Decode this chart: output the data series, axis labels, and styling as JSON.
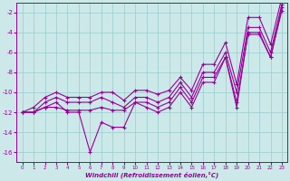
{
  "title": "",
  "xlabel": "Windchill (Refroidissement éolien,°C)",
  "background_color": "#cce8e8",
  "grid_color": "#99cccc",
  "line_color": "#990099",
  "x_values": [
    0,
    1,
    2,
    3,
    4,
    5,
    6,
    7,
    8,
    9,
    10,
    11,
    12,
    13,
    14,
    15,
    16,
    17,
    18,
    19,
    20,
    21,
    22,
    23
  ],
  "line1": [
    -12,
    -12,
    -11.5,
    -11,
    -12,
    -12,
    -16,
    -13,
    -13.5,
    -13.5,
    -11,
    -11.5,
    -12,
    -11.5,
    -10,
    -11.5,
    -9,
    -9,
    -6.5,
    -11.5,
    -4,
    -4,
    -6.5,
    -1.5
  ],
  "line2": [
    -12,
    -12,
    -11.5,
    -11.5,
    -11.8,
    -11.8,
    -11.8,
    -11.5,
    -11.8,
    -11.8,
    -11,
    -11,
    -11.5,
    -11,
    -9.5,
    -11,
    -8.5,
    -8.5,
    -6.5,
    -11,
    -4.2,
    -4.2,
    -6.5,
    -1.8
  ],
  "line3": [
    -12,
    -12,
    -11,
    -10.5,
    -11,
    -11,
    -11,
    -10.5,
    -11,
    -11.5,
    -10.5,
    -10.5,
    -11,
    -10.5,
    -9,
    -10.5,
    -8,
    -8,
    -6,
    -10,
    -3.5,
    -3.5,
    -6,
    -1.2
  ],
  "line4": [
    -12,
    -11.5,
    -10.5,
    -10,
    -10.5,
    -10.5,
    -10.5,
    -10,
    -10,
    -10.8,
    -9.8,
    -9.8,
    -10.2,
    -9.8,
    -8.5,
    -9.8,
    -7.2,
    -7.2,
    -5,
    -9.2,
    -2.5,
    -2.5,
    -5.2,
    -0.5
  ],
  "ylim": [
    -17,
    -1
  ],
  "yticks": [
    -16,
    -14,
    -12,
    -10,
    -8,
    -6,
    -4,
    -2
  ],
  "xlim": [
    -0.5,
    23.5
  ]
}
